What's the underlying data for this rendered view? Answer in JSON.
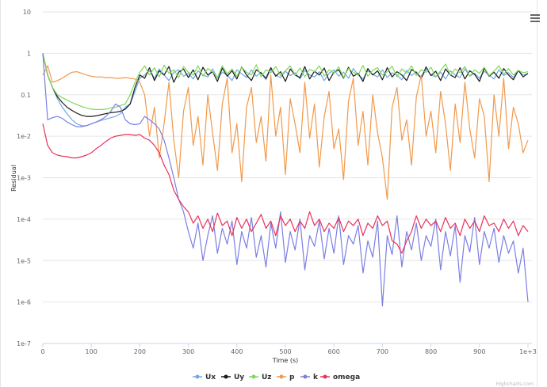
{
  "chart_data": {
    "type": "line",
    "xlabel": "Time (s)",
    "ylabel": "Residual",
    "yscale": "log",
    "ylim": [
      1e-07,
      10
    ],
    "xlim": [
      0,
      1000
    ],
    "x_start": 0,
    "x_step": 10,
    "x_ticks": [
      "0",
      "100",
      "200",
      "300",
      "400",
      "500",
      "600",
      "700",
      "800",
      "900",
      "1e+3"
    ],
    "x_tick_values": [
      0,
      100,
      200,
      300,
      400,
      500,
      600,
      700,
      800,
      900,
      1000
    ],
    "y_ticks": [
      "10",
      "1",
      "0.1",
      "1e-2",
      "1e-3",
      "1e-4",
      "1e-5",
      "1e-6",
      "1e-7"
    ],
    "y_tick_values": [
      10,
      1,
      0.1,
      0.01,
      0.001,
      0.0001,
      1e-05,
      1e-06,
      1e-07
    ],
    "grid": true,
    "legend_position": "bottom-center",
    "credit": "Highcharts.com",
    "series": [
      {
        "name": "Ux",
        "color": "#6fa8e6",
        "values": [
          1,
          0.3,
          0.15,
          0.08,
          0.05,
          0.035,
          0.025,
          0.02,
          0.018,
          0.018,
          0.02,
          0.022,
          0.024,
          0.026,
          0.028,
          0.03,
          0.035,
          0.05,
          0.06,
          0.12,
          0.25,
          0.3,
          0.38,
          0.25,
          0.42,
          0.3,
          0.22,
          0.35,
          0.4,
          0.28,
          0.33,
          0.24,
          0.38,
          0.3,
          0.27,
          0.42,
          0.25,
          0.35,
          0.3,
          0.22,
          0.4,
          0.32,
          0.26,
          0.4,
          0.28,
          0.35,
          0.23,
          0.41,
          0.3,
          0.26,
          0.37,
          0.29,
          0.34,
          0.24,
          0.39,
          0.3,
          0.27,
          0.36,
          0.22,
          0.33,
          0.4,
          0.28,
          0.35,
          0.25,
          0.43,
          0.3,
          0.24,
          0.38,
          0.31,
          0.27,
          0.4,
          0.26,
          0.34,
          0.3,
          0.23,
          0.39,
          0.29,
          0.36,
          0.25,
          0.41,
          0.3,
          0.27,
          0.35,
          0.24,
          0.38,
          0.3,
          0.26,
          0.42,
          0.28,
          0.33,
          0.25,
          0.37,
          0.3,
          0.24,
          0.4,
          0.29,
          0.34,
          0.26,
          0.38,
          0.3,
          0.32
        ]
      },
      {
        "name": "Uy",
        "color": "#1a1a1a",
        "values": [
          1,
          0.3,
          0.15,
          0.09,
          0.065,
          0.05,
          0.042,
          0.036,
          0.032,
          0.03,
          0.03,
          0.031,
          0.033,
          0.035,
          0.037,
          0.038,
          0.04,
          0.045,
          0.06,
          0.15,
          0.3,
          0.25,
          0.45,
          0.22,
          0.38,
          0.3,
          0.48,
          0.2,
          0.35,
          0.42,
          0.26,
          0.4,
          0.23,
          0.46,
          0.3,
          0.36,
          0.21,
          0.44,
          0.28,
          0.38,
          0.24,
          0.47,
          0.3,
          0.22,
          0.4,
          0.33,
          0.25,
          0.45,
          0.28,
          0.36,
          0.21,
          0.42,
          0.3,
          0.26,
          0.48,
          0.24,
          0.37,
          0.3,
          0.44,
          0.22,
          0.35,
          0.4,
          0.25,
          0.46,
          0.28,
          0.33,
          0.21,
          0.43,
          0.3,
          0.38,
          0.23,
          0.45,
          0.27,
          0.36,
          0.3,
          0.22,
          0.41,
          0.34,
          0.25,
          0.47,
          0.29,
          0.37,
          0.22,
          0.42,
          0.3,
          0.26,
          0.45,
          0.24,
          0.38,
          0.31,
          0.21,
          0.44,
          0.28,
          0.35,
          0.25,
          0.43,
          0.3,
          0.23,
          0.39,
          0.27,
          0.33
        ]
      },
      {
        "name": "Uz",
        "color": "#7ed957",
        "values": [
          1,
          0.3,
          0.15,
          0.1,
          0.085,
          0.075,
          0.065,
          0.058,
          0.052,
          0.048,
          0.045,
          0.044,
          0.044,
          0.045,
          0.048,
          0.05,
          0.055,
          0.06,
          0.1,
          0.2,
          0.35,
          0.5,
          0.3,
          0.45,
          0.27,
          0.52,
          0.33,
          0.4,
          0.26,
          0.48,
          0.35,
          0.3,
          0.5,
          0.28,
          0.43,
          0.36,
          0.26,
          0.5,
          0.32,
          0.42,
          0.28,
          0.46,
          0.35,
          0.3,
          0.53,
          0.27,
          0.4,
          0.34,
          0.48,
          0.29,
          0.38,
          0.5,
          0.3,
          0.44,
          0.27,
          0.41,
          0.36,
          0.5,
          0.28,
          0.4,
          0.33,
          0.47,
          0.26,
          0.43,
          0.35,
          0.3,
          0.51,
          0.28,
          0.39,
          0.45,
          0.3,
          0.36,
          0.49,
          0.27,
          0.42,
          0.33,
          0.5,
          0.29,
          0.4,
          0.35,
          0.46,
          0.27,
          0.38,
          0.55,
          0.3,
          0.42,
          0.34,
          0.48,
          0.28,
          0.4,
          0.33,
          0.46,
          0.29,
          0.37,
          0.5,
          0.31,
          0.43,
          0.3,
          0.39,
          0.34,
          0.36
        ]
      },
      {
        "name": "p",
        "color": "#f2994a",
        "values": [
          0.3,
          0.5,
          0.2,
          0.22,
          0.25,
          0.3,
          0.35,
          0.36,
          0.33,
          0.3,
          0.28,
          0.27,
          0.27,
          0.26,
          0.26,
          0.25,
          0.25,
          0.26,
          0.25,
          0.24,
          0.2,
          0.1,
          0.01,
          0.05,
          0.003,
          0.02,
          0.2,
          0.008,
          0.001,
          0.04,
          0.15,
          0.006,
          0.03,
          0.002,
          0.1,
          0.012,
          0.0015,
          0.06,
          0.25,
          0.004,
          0.02,
          0.0008,
          0.05,
          0.15,
          0.007,
          0.03,
          0.0025,
          0.3,
          0.01,
          0.05,
          0.0012,
          0.08,
          0.02,
          0.004,
          0.2,
          0.009,
          0.06,
          0.0018,
          0.03,
          0.12,
          0.005,
          0.015,
          0.0009,
          0.07,
          0.25,
          0.006,
          0.04,
          0.002,
          0.1,
          0.012,
          0.003,
          0.0003,
          0.05,
          0.15,
          0.008,
          0.025,
          0.002,
          0.09,
          0.3,
          0.01,
          0.04,
          0.004,
          0.12,
          0.02,
          0.0015,
          0.06,
          0.007,
          0.2,
          0.015,
          0.003,
          0.08,
          0.03,
          0.0008,
          0.1,
          0.01,
          0.25,
          0.005,
          0.05,
          0.02,
          0.004,
          0.008
        ]
      },
      {
        "name": "k",
        "color": "#7b7fe3",
        "values": [
          1,
          0.025,
          0.028,
          0.03,
          0.027,
          0.022,
          0.019,
          0.017,
          0.017,
          0.018,
          0.02,
          0.022,
          0.025,
          0.03,
          0.04,
          0.06,
          0.05,
          0.025,
          0.02,
          0.019,
          0.02,
          0.03,
          0.025,
          0.02,
          0.015,
          0.008,
          0.003,
          0.001,
          0.0003,
          0.00015,
          5e-05,
          2e-05,
          8e-05,
          1e-05,
          4e-05,
          0.00012,
          1.5e-05,
          6e-05,
          2.5e-05,
          9e-05,
          8e-06,
          5e-05,
          2e-05,
          0.00011,
          1.2e-05,
          4e-05,
          7e-06,
          8e-05,
          2e-05,
          0.00015,
          9e-06,
          5e-05,
          1.8e-05,
          0.0001,
          6e-06,
          4e-05,
          2.2e-05,
          9e-05,
          1.1e-05,
          6e-05,
          1.5e-05,
          0.00012,
          8e-06,
          4e-05,
          2.5e-05,
          7e-05,
          5e-06,
          3e-05,
          1.2e-05,
          9e-05,
          8e-07,
          4e-05,
          1.4e-05,
          0.00012,
          7e-06,
          5e-05,
          1.8e-05,
          8e-05,
          1e-05,
          4e-05,
          2.2e-05,
          0.0001,
          6e-06,
          5e-05,
          1.3e-05,
          7e-05,
          3e-06,
          4e-05,
          1.6e-05,
          0.00011,
          8e-06,
          5e-05,
          2e-05,
          6e-05,
          9e-06,
          4e-05,
          1.5e-05,
          3e-05,
          5e-06,
          2e-05,
          1e-06
        ]
      },
      {
        "name": "omega",
        "color": "#e8325a",
        "values": [
          0.02,
          0.006,
          0.004,
          0.0035,
          0.0033,
          0.0032,
          0.003,
          0.003,
          0.0032,
          0.0035,
          0.004,
          0.005,
          0.006,
          0.0075,
          0.009,
          0.01,
          0.0105,
          0.011,
          0.011,
          0.0105,
          0.011,
          0.009,
          0.008,
          0.006,
          0.004,
          0.002,
          0.0012,
          0.0005,
          0.0003,
          0.0002,
          0.00015,
          8e-05,
          0.00012,
          6e-05,
          0.0001,
          5e-05,
          0.00014,
          7e-05,
          9e-05,
          4e-05,
          0.00011,
          6e-05,
          0.0001,
          5e-05,
          8e-05,
          0.00013,
          6e-05,
          9e-05,
          4e-05,
          0.00012,
          7e-05,
          0.0001,
          5e-05,
          9e-05,
          6e-05,
          0.00015,
          7e-05,
          0.0001,
          5e-05,
          8e-05,
          6e-05,
          0.00011,
          5e-05,
          9e-05,
          7e-05,
          0.0001,
          4e-05,
          8e-05,
          6e-05,
          0.00012,
          7e-05,
          9e-05,
          3e-05,
          2.5e-05,
          1.5e-05,
          3e-05,
          5e-05,
          0.00012,
          6e-05,
          0.0001,
          7e-05,
          9e-05,
          5e-05,
          0.00011,
          6e-05,
          8e-05,
          4e-05,
          0.0001,
          6e-05,
          9e-05,
          5e-05,
          0.00012,
          7e-05,
          8e-05,
          5e-05,
          0.0001,
          6e-05,
          9e-05,
          4e-05,
          7e-05,
          5e-05
        ]
      }
    ]
  }
}
